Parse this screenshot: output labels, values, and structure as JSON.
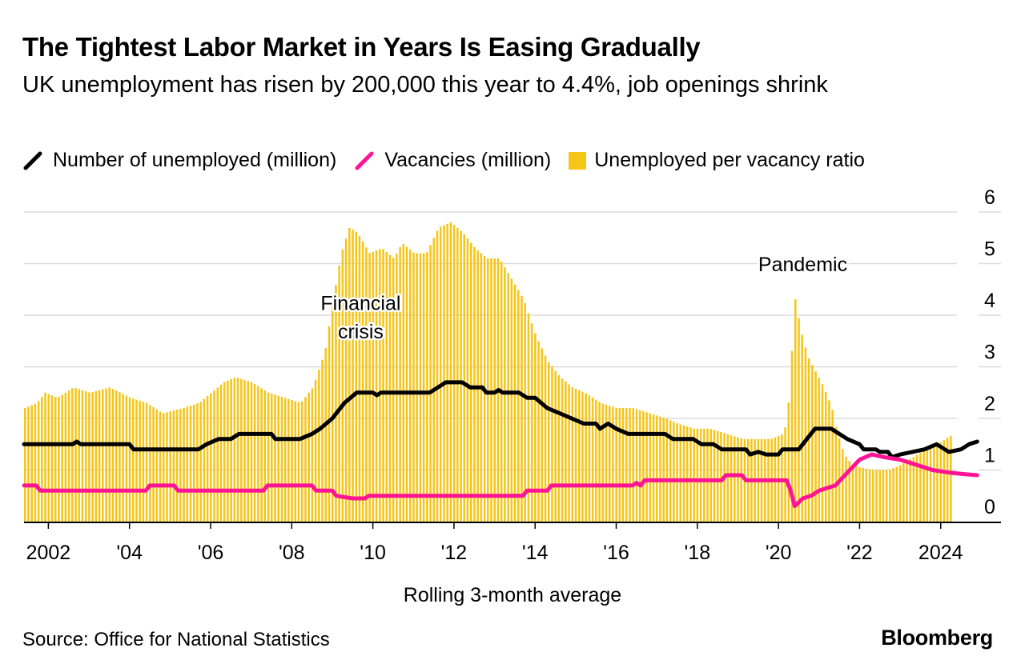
{
  "header": {
    "title": "The Tightest Labor Market in Years Is Easing Gradually",
    "subtitle": "UK unemployment has risen by 200,000 this year to 4.4%, job openings shrink"
  },
  "legend": [
    {
      "label": "Number of unemployed (million)",
      "kind": "line",
      "color": "#000000"
    },
    {
      "label": "Vacancies (million)",
      "kind": "line",
      "color": "#ff1493"
    },
    {
      "label": "Unemployed per vacancy ratio",
      "kind": "bar",
      "color": "#f5c518"
    }
  ],
  "footer": {
    "note": "Rolling 3-month average",
    "source": "Source: Office for National Statistics",
    "brand": "Bloomberg"
  },
  "chart_data": {
    "type": "bar+line",
    "title": "The Tightest Labor Market in Years Is Easing Gradually",
    "xlabel": "Rolling 3-month average",
    "ylabel": "",
    "xlim": [
      2001.4,
      2024.4
    ],
    "ylim": [
      0,
      6
    ],
    "y_ticks": [
      0,
      1,
      2,
      3,
      4,
      5,
      6
    ],
    "x_ticks": [
      {
        "value": 2002,
        "label": "2002"
      },
      {
        "value": 2004,
        "label": "'04"
      },
      {
        "value": 2006,
        "label": "'06"
      },
      {
        "value": 2008,
        "label": "'08"
      },
      {
        "value": 2010,
        "label": "'10"
      },
      {
        "value": 2012,
        "label": "'12"
      },
      {
        "value": 2014,
        "label": "'14"
      },
      {
        "value": 2016,
        "label": "'16"
      },
      {
        "value": 2018,
        "label": "'18"
      },
      {
        "value": 2020,
        "label": "'20"
      },
      {
        "value": 2022,
        "label": "'22"
      },
      {
        "value": 2024,
        "label": "2024"
      }
    ],
    "grid": true,
    "annotations": [
      {
        "text": "Financial",
        "x": 2009.7,
        "y": 4.1
      },
      {
        "text": "crisis",
        "x": 2009.7,
        "y": 3.55
      },
      {
        "text": "Pandemic",
        "x": 2020.6,
        "y": 4.85
      }
    ],
    "series": [
      {
        "name": "Unemployed per vacancy ratio",
        "type": "bar",
        "color": "#f5c518",
        "step": 0.0833,
        "points": [
          [
            2001.4,
            2.2
          ],
          [
            2001.7,
            2.3
          ],
          [
            2001.9,
            2.5
          ],
          [
            2002.2,
            2.4
          ],
          [
            2002.6,
            2.6
          ],
          [
            2003.0,
            2.5
          ],
          [
            2003.5,
            2.6
          ],
          [
            2004.0,
            2.4
          ],
          [
            2004.4,
            2.3
          ],
          [
            2004.8,
            2.1
          ],
          [
            2005.3,
            2.2
          ],
          [
            2005.7,
            2.3
          ],
          [
            2006.0,
            2.5
          ],
          [
            2006.3,
            2.7
          ],
          [
            2006.6,
            2.8
          ],
          [
            2007.0,
            2.7
          ],
          [
            2007.4,
            2.5
          ],
          [
            2007.8,
            2.4
          ],
          [
            2008.2,
            2.3
          ],
          [
            2008.5,
            2.6
          ],
          [
            2008.8,
            3.3
          ],
          [
            2009.0,
            4.3
          ],
          [
            2009.2,
            5.2
          ],
          [
            2009.4,
            5.7
          ],
          [
            2009.6,
            5.6
          ],
          [
            2009.9,
            5.2
          ],
          [
            2010.2,
            5.3
          ],
          [
            2010.5,
            5.1
          ],
          [
            2010.7,
            5.4
          ],
          [
            2011.0,
            5.2
          ],
          [
            2011.3,
            5.2
          ],
          [
            2011.6,
            5.7
          ],
          [
            2011.9,
            5.8
          ],
          [
            2012.2,
            5.6
          ],
          [
            2012.5,
            5.3
          ],
          [
            2012.8,
            5.1
          ],
          [
            2013.1,
            5.1
          ],
          [
            2013.4,
            4.7
          ],
          [
            2013.7,
            4.3
          ],
          [
            2014.0,
            3.6
          ],
          [
            2014.3,
            3.1
          ],
          [
            2014.6,
            2.8
          ],
          [
            2014.9,
            2.6
          ],
          [
            2015.2,
            2.5
          ],
          [
            2015.6,
            2.3
          ],
          [
            2016.0,
            2.2
          ],
          [
            2016.4,
            2.2
          ],
          [
            2016.8,
            2.1
          ],
          [
            2017.2,
            2.0
          ],
          [
            2017.5,
            1.9
          ],
          [
            2017.9,
            1.8
          ],
          [
            2018.3,
            1.8
          ],
          [
            2018.7,
            1.7
          ],
          [
            2019.1,
            1.6
          ],
          [
            2019.5,
            1.6
          ],
          [
            2019.8,
            1.6
          ],
          [
            2020.1,
            1.7
          ],
          [
            2020.2,
            2.0
          ],
          [
            2020.3,
            3.2
          ],
          [
            2020.4,
            4.4
          ],
          [
            2020.5,
            3.8
          ],
          [
            2020.7,
            3.2
          ],
          [
            2020.9,
            2.9
          ],
          [
            2021.1,
            2.6
          ],
          [
            2021.3,
            2.2
          ],
          [
            2021.4,
            1.8
          ],
          [
            2021.6,
            1.3
          ],
          [
            2021.8,
            1.1
          ],
          [
            2022.0,
            1.05
          ],
          [
            2022.3,
            1.0
          ],
          [
            2022.7,
            1.0
          ],
          [
            2023.0,
            1.1
          ],
          [
            2023.3,
            1.25
          ],
          [
            2023.6,
            1.4
          ],
          [
            2023.9,
            1.5
          ],
          [
            2024.1,
            1.6
          ],
          [
            2024.3,
            1.7
          ]
        ]
      },
      {
        "name": "Number of unemployed (million)",
        "type": "line",
        "color": "#000000",
        "points": [
          [
            2001.4,
            1.5
          ],
          [
            2002.6,
            1.5
          ],
          [
            2002.7,
            1.55
          ],
          [
            2002.8,
            1.5
          ],
          [
            2004.0,
            1.5
          ],
          [
            2004.1,
            1.4
          ],
          [
            2005.7,
            1.4
          ],
          [
            2005.9,
            1.5
          ],
          [
            2006.2,
            1.6
          ],
          [
            2006.5,
            1.6
          ],
          [
            2006.7,
            1.7
          ],
          [
            2007.5,
            1.7
          ],
          [
            2007.6,
            1.6
          ],
          [
            2008.2,
            1.6
          ],
          [
            2008.5,
            1.7
          ],
          [
            2008.7,
            1.8
          ],
          [
            2009.0,
            2.0
          ],
          [
            2009.3,
            2.3
          ],
          [
            2009.6,
            2.5
          ],
          [
            2010.0,
            2.5
          ],
          [
            2010.1,
            2.45
          ],
          [
            2010.2,
            2.5
          ],
          [
            2011.4,
            2.5
          ],
          [
            2011.6,
            2.6
          ],
          [
            2011.8,
            2.7
          ],
          [
            2012.2,
            2.7
          ],
          [
            2012.4,
            2.6
          ],
          [
            2012.7,
            2.6
          ],
          [
            2012.8,
            2.5
          ],
          [
            2013.0,
            2.5
          ],
          [
            2013.1,
            2.55
          ],
          [
            2013.2,
            2.5
          ],
          [
            2013.6,
            2.5
          ],
          [
            2013.8,
            2.4
          ],
          [
            2014.0,
            2.4
          ],
          [
            2014.3,
            2.2
          ],
          [
            2014.6,
            2.1
          ],
          [
            2014.9,
            2.0
          ],
          [
            2015.2,
            1.9
          ],
          [
            2015.5,
            1.9
          ],
          [
            2015.6,
            1.8
          ],
          [
            2015.8,
            1.9
          ],
          [
            2016.0,
            1.8
          ],
          [
            2016.3,
            1.7
          ],
          [
            2017.2,
            1.7
          ],
          [
            2017.4,
            1.6
          ],
          [
            2017.9,
            1.6
          ],
          [
            2018.1,
            1.5
          ],
          [
            2018.4,
            1.5
          ],
          [
            2018.6,
            1.4
          ],
          [
            2019.2,
            1.4
          ],
          [
            2019.3,
            1.3
          ],
          [
            2019.5,
            1.35
          ],
          [
            2019.7,
            1.3
          ],
          [
            2020.0,
            1.3
          ],
          [
            2020.1,
            1.4
          ],
          [
            2020.5,
            1.4
          ],
          [
            2020.7,
            1.6
          ],
          [
            2020.9,
            1.8
          ],
          [
            2021.3,
            1.8
          ],
          [
            2021.5,
            1.7
          ],
          [
            2021.7,
            1.6
          ],
          [
            2022.0,
            1.5
          ],
          [
            2022.1,
            1.4
          ],
          [
            2022.4,
            1.4
          ],
          [
            2022.5,
            1.35
          ],
          [
            2022.7,
            1.35
          ],
          [
            2022.8,
            1.25
          ],
          [
            2023.0,
            1.3
          ],
          [
            2023.3,
            1.35
          ],
          [
            2023.6,
            1.4
          ],
          [
            2023.9,
            1.5
          ],
          [
            2024.1,
            1.4
          ],
          [
            2024.2,
            1.35
          ],
          [
            2024.5,
            1.4
          ],
          [
            2024.7,
            1.5
          ],
          [
            2024.9,
            1.55
          ]
        ]
      },
      {
        "name": "Vacancies (million)",
        "type": "line",
        "color": "#ff1493",
        "points": [
          [
            2001.4,
            0.7
          ],
          [
            2001.7,
            0.7
          ],
          [
            2001.8,
            0.6
          ],
          [
            2004.4,
            0.6
          ],
          [
            2004.5,
            0.7
          ],
          [
            2005.1,
            0.7
          ],
          [
            2005.2,
            0.6
          ],
          [
            2007.3,
            0.6
          ],
          [
            2007.4,
            0.7
          ],
          [
            2008.5,
            0.7
          ],
          [
            2008.6,
            0.6
          ],
          [
            2009.0,
            0.6
          ],
          [
            2009.1,
            0.5
          ],
          [
            2009.5,
            0.45
          ],
          [
            2009.8,
            0.45
          ],
          [
            2009.9,
            0.5
          ],
          [
            2013.7,
            0.5
          ],
          [
            2013.8,
            0.6
          ],
          [
            2014.3,
            0.6
          ],
          [
            2014.4,
            0.7
          ],
          [
            2016.4,
            0.7
          ],
          [
            2016.5,
            0.75
          ],
          [
            2016.6,
            0.7
          ],
          [
            2016.7,
            0.8
          ],
          [
            2018.6,
            0.8
          ],
          [
            2018.7,
            0.9
          ],
          [
            2019.1,
            0.9
          ],
          [
            2019.2,
            0.8
          ],
          [
            2020.2,
            0.8
          ],
          [
            2020.3,
            0.6
          ],
          [
            2020.4,
            0.3
          ],
          [
            2020.6,
            0.45
          ],
          [
            2020.8,
            0.5
          ],
          [
            2021.0,
            0.6
          ],
          [
            2021.4,
            0.7
          ],
          [
            2021.7,
            0.95
          ],
          [
            2022.0,
            1.2
          ],
          [
            2022.3,
            1.3
          ],
          [
            2022.6,
            1.25
          ],
          [
            2023.0,
            1.2
          ],
          [
            2023.4,
            1.1
          ],
          [
            2023.8,
            1.0
          ],
          [
            2024.2,
            0.95
          ],
          [
            2024.6,
            0.92
          ],
          [
            2024.9,
            0.9
          ]
        ]
      }
    ]
  }
}
